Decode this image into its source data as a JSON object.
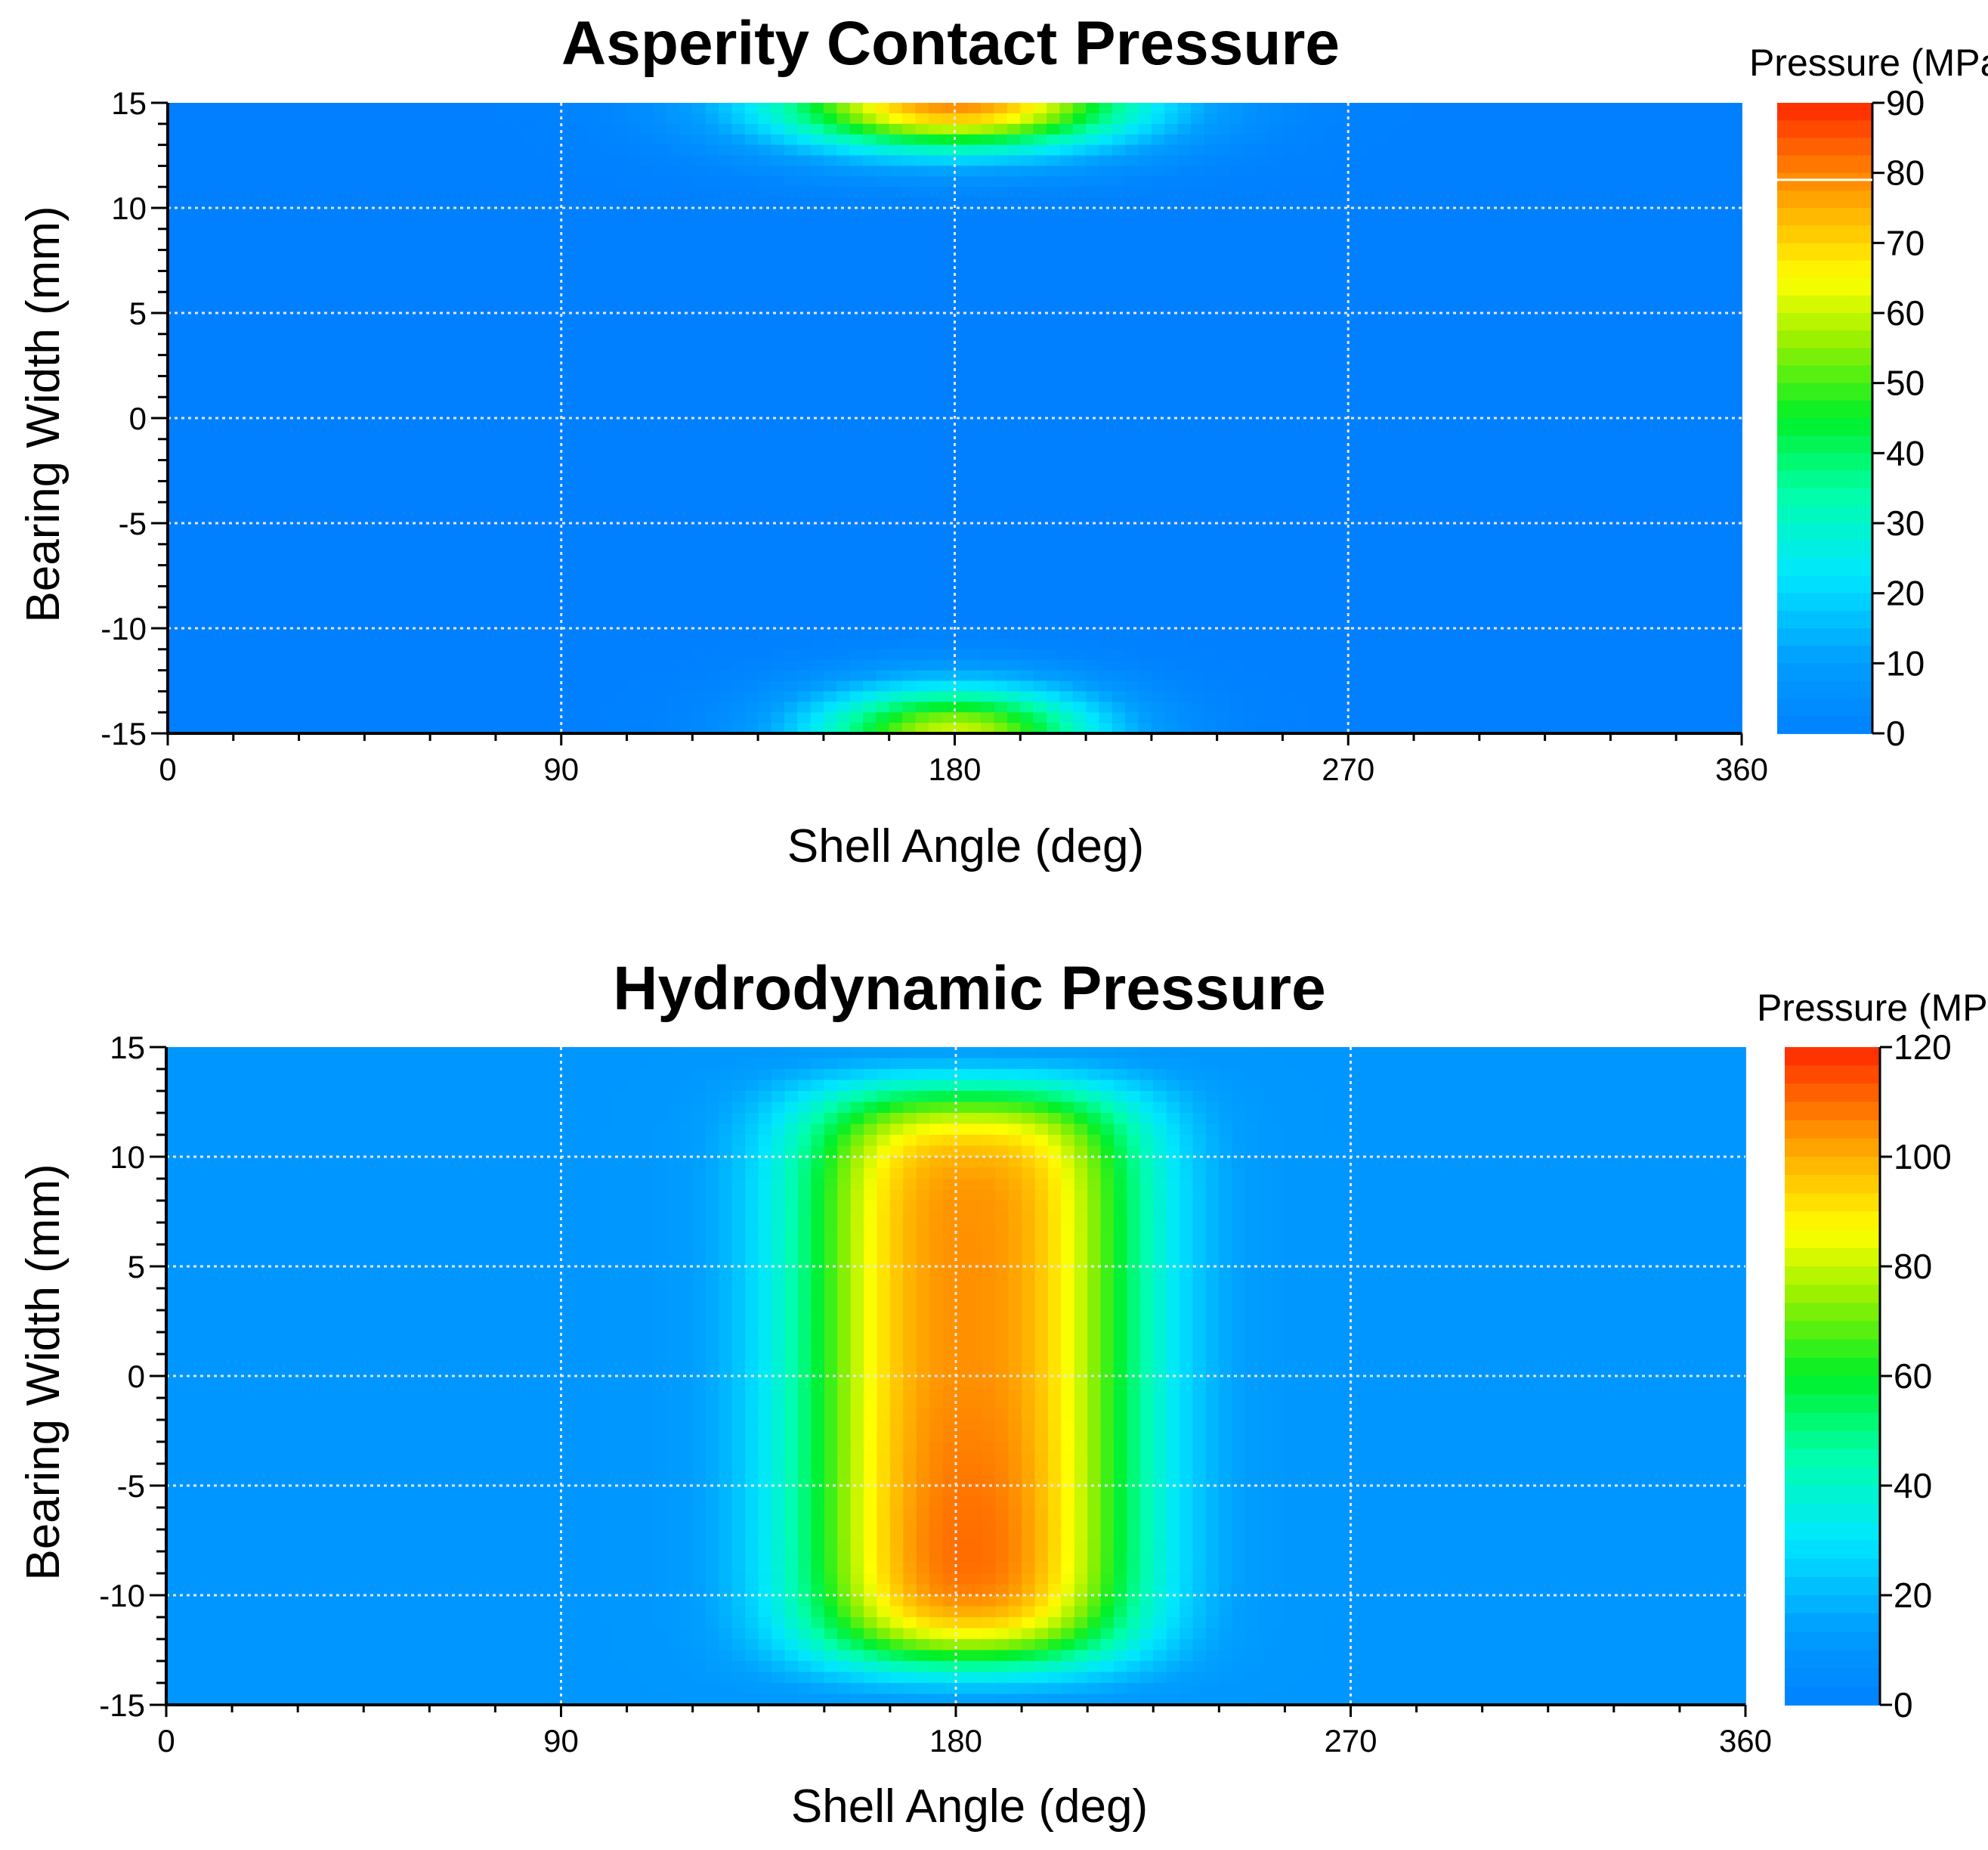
{
  "chart_data": [
    {
      "type": "heatmap",
      "title": "Asperity Contact Pressure",
      "xlabel": "Shell Angle (deg)",
      "ylabel": "Bearing Width (mm)",
      "xlim": [
        0,
        360
      ],
      "ylim": [
        -15,
        15
      ],
      "x_ticks": [
        "0",
        "90",
        "180",
        "270",
        "360"
      ],
      "y_ticks": [
        "15",
        "10",
        "5",
        "0",
        "-5",
        "-10",
        "-15"
      ],
      "grid": true,
      "colorbar": {
        "label": "Pressure (MPa)",
        "min": 0,
        "max": 90,
        "ticks": [
          "90",
          "80",
          "70",
          "60",
          "50",
          "40",
          "30",
          "20",
          "10",
          "0"
        ],
        "marker_value": 79
      },
      "regions": [
        {
          "location": "top edge",
          "x_center": 180,
          "x_half_width": 50,
          "peak_at_edge": 79
        },
        {
          "location": "bottom edge",
          "x_center": 180,
          "x_half_width": 40,
          "peak_at_edge": 60
        }
      ],
      "background_value": 0
    },
    {
      "type": "heatmap",
      "title": "Hydrodynamic Pressure",
      "xlabel": "Shell Angle (deg)",
      "ylabel": "Bearing Width (mm)",
      "xlim": [
        0,
        360
      ],
      "ylim": [
        -15,
        15
      ],
      "x_ticks": [
        "0",
        "90",
        "180",
        "270",
        "360"
      ],
      "y_ticks": [
        "15",
        "10",
        "5",
        "0",
        "-5",
        "-10",
        "-15"
      ],
      "grid": true,
      "colorbar": {
        "label": "Pressure (MPa)",
        "min": 0,
        "max": 120,
        "ticks": [
          "120",
          "100",
          "80",
          "60",
          "40",
          "20",
          "0"
        ]
      },
      "peak_region": {
        "x_center": 183,
        "x_range": [
          140,
          225
        ],
        "y_range": [
          -13,
          13
        ],
        "peak_value": 115,
        "peak_location_y": -12
      },
      "background_value": 10
    }
  ]
}
